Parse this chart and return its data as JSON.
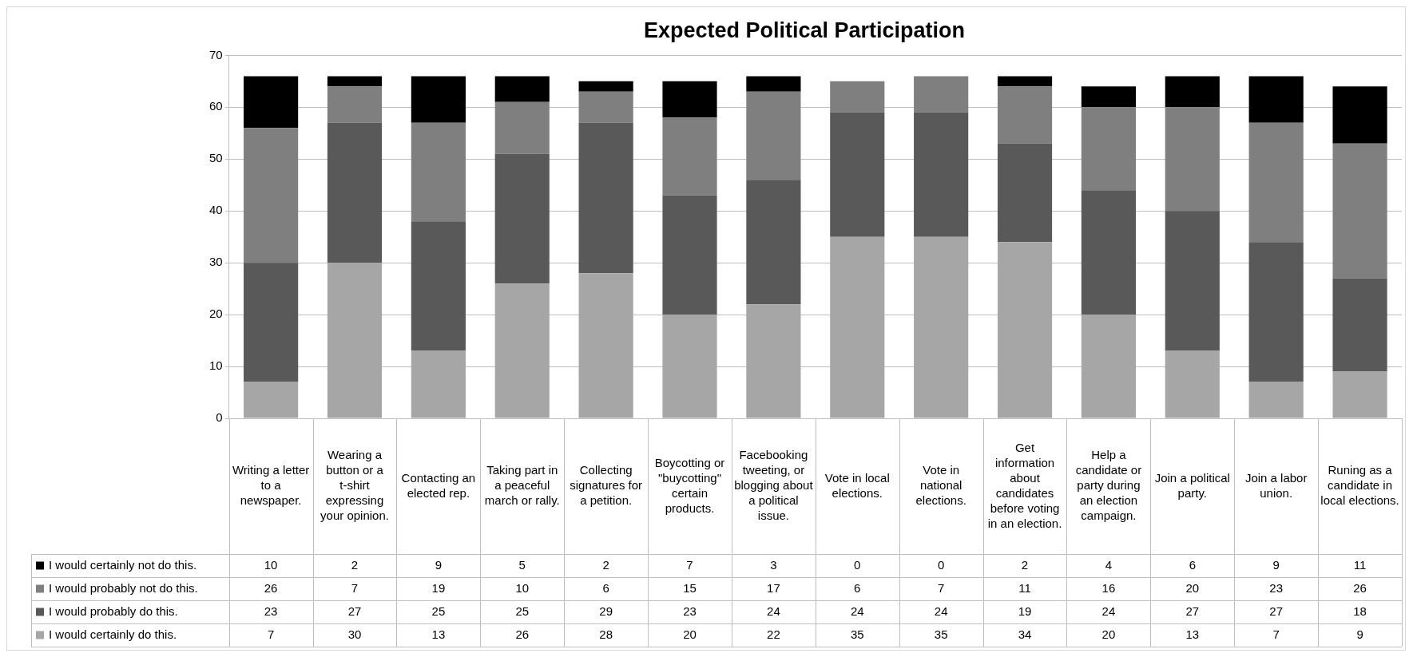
{
  "chart_data": {
    "type": "bar",
    "title": "Expected Political Participation",
    "categories": [
      "Writing a letter to a newspaper.",
      "Wearing a button or a t-shirt expressing your opinion.",
      "Contacting an elected rep.",
      "Taking part in a peaceful march or rally.",
      "Collecting signatures for a petition.",
      "Boycotting or \"buycotting\" certain products.",
      "Facebooking tweeting, or blogging about a political issue.",
      "Vote in local elections.",
      "Vote in national elections.",
      "Get information about candidates before voting in an election.",
      "Help a candidate or party during an election campaign.",
      "Join a political party.",
      "Join a labor union.",
      "Runing as a candidate in local elections."
    ],
    "series": [
      {
        "name": "I would certainly do this.",
        "color": "#a6a6a6",
        "values": [
          7,
          30,
          13,
          26,
          28,
          20,
          22,
          35,
          35,
          34,
          20,
          13,
          7,
          9
        ]
      },
      {
        "name": "I would probably do this.",
        "color": "#595959",
        "values": [
          23,
          27,
          25,
          25,
          29,
          23,
          24,
          24,
          24,
          19,
          24,
          27,
          27,
          18
        ]
      },
      {
        "name": "I would probably not do this.",
        "color": "#7f7f7f",
        "values": [
          26,
          7,
          19,
          10,
          6,
          15,
          17,
          6,
          7,
          11,
          16,
          20,
          23,
          26
        ]
      },
      {
        "name": "I would certainly not do this.",
        "color": "#000000",
        "values": [
          10,
          2,
          9,
          5,
          2,
          7,
          3,
          0,
          0,
          2,
          4,
          6,
          9,
          11
        ]
      }
    ],
    "stacked": true,
    "ylim": [
      0,
      70
    ],
    "yticks": [
      0,
      10,
      20,
      30,
      40,
      50,
      60,
      70
    ],
    "grid": "y",
    "legend": "bottom left",
    "data_labels": true
  }
}
